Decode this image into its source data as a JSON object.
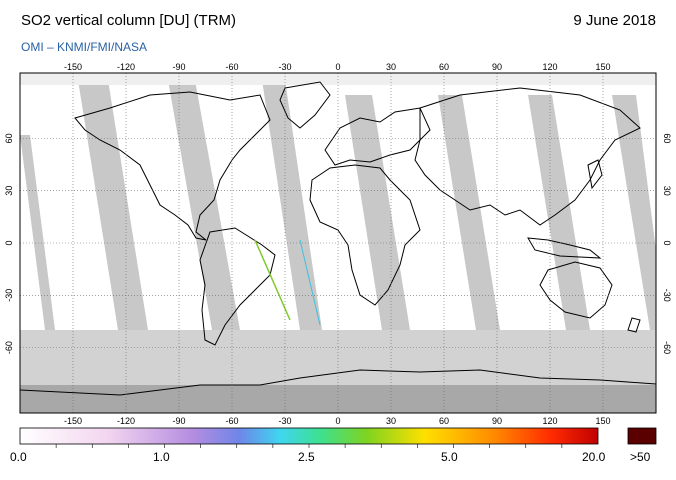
{
  "header": {
    "title": "SO2 vertical column [DU] (TRM)",
    "date": "9 June 2018",
    "credit": "OMI  –  KNMI/FMI/NASA"
  },
  "map": {
    "lon_ticks": [
      "-150",
      "-120",
      "-90",
      "-60",
      "-30",
      "0",
      "30",
      "60",
      "90",
      "120",
      "150"
    ],
    "lat_ticks": [
      "60",
      "30",
      "0",
      "-30",
      "-60"
    ],
    "colors": {
      "ocean": "#ffffff",
      "land": "#ffffff",
      "no_data_gap": "#bdbdbd",
      "polar_shade": "#aaaaaa",
      "coastline": "#000000",
      "grid": "#6a6a6a"
    }
  },
  "colorbar": {
    "labels": [
      "0.0",
      "1.0",
      "2.5",
      "5.0",
      "20.0"
    ],
    "overflow_label": ">50",
    "overflow_color": "#5a0000"
  }
}
